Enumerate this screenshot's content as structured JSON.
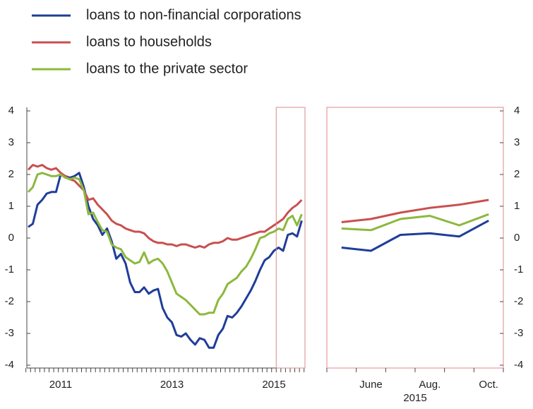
{
  "chart_data": [
    {
      "type": "line",
      "ylim": [
        -4,
        4
      ],
      "yticks": [
        -4,
        -3,
        -2,
        -1,
        0,
        1,
        2,
        3,
        4
      ],
      "ytick_side": "left",
      "categories": [
        null,
        null,
        null,
        null,
        null,
        null,
        null,
        "2011",
        null,
        null,
        null,
        null,
        null,
        null,
        null,
        null,
        null,
        null,
        null,
        null,
        null,
        null,
        null,
        null,
        null,
        null,
        null,
        null,
        null,
        null,
        null,
        "2013",
        null,
        null,
        null,
        null,
        null,
        null,
        null,
        null,
        null,
        null,
        null,
        null,
        null,
        null,
        null,
        null,
        null,
        null,
        null,
        null,
        null,
        "2015",
        null,
        null,
        null,
        null,
        null,
        null
      ],
      "series": [
        {
          "name": "loans to non-financial corporations",
          "color": "#1f3d99",
          "values": [
            0.35,
            0.45,
            1.05,
            1.2,
            1.4,
            1.45,
            1.45,
            2.0,
            1.95,
            1.9,
            1.95,
            2.05,
            1.6,
            1.0,
            0.6,
            0.4,
            0.1,
            0.3,
            -0.1,
            -0.65,
            -0.5,
            -0.8,
            -1.4,
            -1.7,
            -1.7,
            -1.55,
            -1.75,
            -1.65,
            -1.6,
            -2.2,
            -2.5,
            -2.65,
            -3.05,
            -3.1,
            -3.0,
            -3.2,
            -3.35,
            -3.15,
            -3.2,
            -3.45,
            -3.45,
            -3.05,
            -2.85,
            -2.45,
            -2.5,
            -2.35,
            -2.15,
            -1.9,
            -1.65,
            -1.35,
            -1.0,
            -0.7,
            -0.6,
            -0.4,
            -0.3,
            -0.4,
            0.1,
            0.15,
            0.05,
            0.55
          ]
        },
        {
          "name": "loans to households",
          "color": "#c94f4f",
          "values": [
            2.15,
            2.3,
            2.25,
            2.3,
            2.2,
            2.15,
            2.2,
            2.05,
            1.95,
            1.85,
            1.8,
            1.65,
            1.5,
            1.2,
            1.25,
            1.05,
            0.9,
            0.75,
            0.55,
            0.45,
            0.4,
            0.3,
            0.25,
            0.2,
            0.2,
            0.15,
            0.0,
            -0.1,
            -0.15,
            -0.15,
            -0.2,
            -0.2,
            -0.25,
            -0.2,
            -0.2,
            -0.25,
            -0.3,
            -0.25,
            -0.3,
            -0.2,
            -0.15,
            -0.15,
            -0.1,
            0.0,
            -0.05,
            -0.05,
            0.0,
            0.05,
            0.1,
            0.15,
            0.2,
            0.2,
            0.3,
            0.4,
            0.5,
            0.6,
            0.8,
            0.95,
            1.05,
            1.2
          ]
        },
        {
          "name": "loans to the private sector",
          "color": "#8db83e",
          "values": [
            1.45,
            1.6,
            2.0,
            2.05,
            2.0,
            1.95,
            1.95,
            2.0,
            1.9,
            1.85,
            1.9,
            1.85,
            1.5,
            0.75,
            0.8,
            0.5,
            0.25,
            0.2,
            -0.2,
            -0.3,
            -0.35,
            -0.6,
            -0.7,
            -0.8,
            -0.75,
            -0.45,
            -0.8,
            -0.7,
            -0.65,
            -0.8,
            -1.05,
            -1.4,
            -1.75,
            -1.85,
            -1.95,
            -2.1,
            -2.25,
            -2.4,
            -2.4,
            -2.35,
            -2.35,
            -1.95,
            -1.75,
            -1.45,
            -1.35,
            -1.25,
            -1.05,
            -0.9,
            -0.65,
            -0.35,
            0.0,
            0.05,
            0.15,
            0.2,
            0.3,
            0.25,
            0.6,
            0.7,
            0.4,
            0.75
          ]
        }
      ]
    },
    {
      "type": "line",
      "ylim": [
        -4,
        4
      ],
      "yticks": [
        -4,
        -3,
        -2,
        -1,
        0,
        1,
        2,
        3,
        4
      ],
      "ytick_side": "right",
      "categories": [
        null,
        "June",
        null,
        "Aug.",
        null,
        "Oct."
      ],
      "xlabel": "2015",
      "series": [
        {
          "color": "#1f3d99",
          "values": [
            -0.3,
            -0.4,
            0.1,
            0.15,
            0.05,
            0.55
          ]
        },
        {
          "color": "#c94f4f",
          "values": [
            0.5,
            0.6,
            0.8,
            0.95,
            1.05,
            1.2
          ]
        },
        {
          "color": "#8db83e",
          "values": [
            0.3,
            0.25,
            0.6,
            0.7,
            0.4,
            0.75
          ]
        }
      ]
    }
  ]
}
